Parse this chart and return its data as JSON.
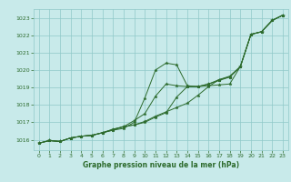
{
  "background_color": "#c8eaea",
  "grid_color": "#8fc8c8",
  "line_color": "#2d6b2d",
  "marker_color": "#2d6b2d",
  "xlabel": "Graphe pression niveau de la mer (hPa)",
  "xlabel_color": "#2d6b2d",
  "tick_color": "#2d6b2d",
  "ylim": [
    1015.4,
    1023.5
  ],
  "xlim": [
    -0.5,
    23.5
  ],
  "yticks": [
    1016,
    1017,
    1018,
    1019,
    1020,
    1021,
    1022,
    1023
  ],
  "xticks": [
    0,
    1,
    2,
    3,
    4,
    5,
    6,
    7,
    8,
    9,
    10,
    11,
    12,
    13,
    14,
    15,
    16,
    17,
    18,
    19,
    20,
    21,
    22,
    23
  ],
  "series": [
    [
      1015.8,
      1015.95,
      1015.9,
      1016.1,
      1016.2,
      1016.25,
      1016.4,
      1016.55,
      1016.65,
      1017.0,
      1018.4,
      1020.0,
      1020.4,
      1020.3,
      1019.1,
      1019.05,
      1019.1,
      1019.15,
      1019.2,
      1020.2,
      1022.05,
      1022.2,
      1022.85,
      1023.15
    ],
    [
      1015.8,
      1015.95,
      1015.9,
      1016.1,
      1016.2,
      1016.25,
      1016.4,
      1016.55,
      1016.75,
      1017.1,
      1017.5,
      1018.5,
      1019.2,
      1019.1,
      1019.05,
      1019.05,
      1019.2,
      1019.4,
      1019.6,
      1020.2,
      1022.05,
      1022.2,
      1022.85,
      1023.15
    ],
    [
      1015.8,
      1015.95,
      1015.9,
      1016.1,
      1016.2,
      1016.25,
      1016.4,
      1016.6,
      1016.75,
      1016.85,
      1017.0,
      1017.3,
      1017.55,
      1018.45,
      1019.05,
      1019.05,
      1019.2,
      1019.45,
      1019.6,
      1020.2,
      1022.05,
      1022.2,
      1022.85,
      1023.15
    ],
    [
      1015.8,
      1015.95,
      1015.9,
      1016.1,
      1016.2,
      1016.25,
      1016.4,
      1016.6,
      1016.75,
      1016.85,
      1017.05,
      1017.35,
      1017.6,
      1017.85,
      1018.1,
      1018.55,
      1019.05,
      1019.45,
      1019.65,
      1020.2,
      1022.05,
      1022.2,
      1022.85,
      1023.15
    ]
  ]
}
